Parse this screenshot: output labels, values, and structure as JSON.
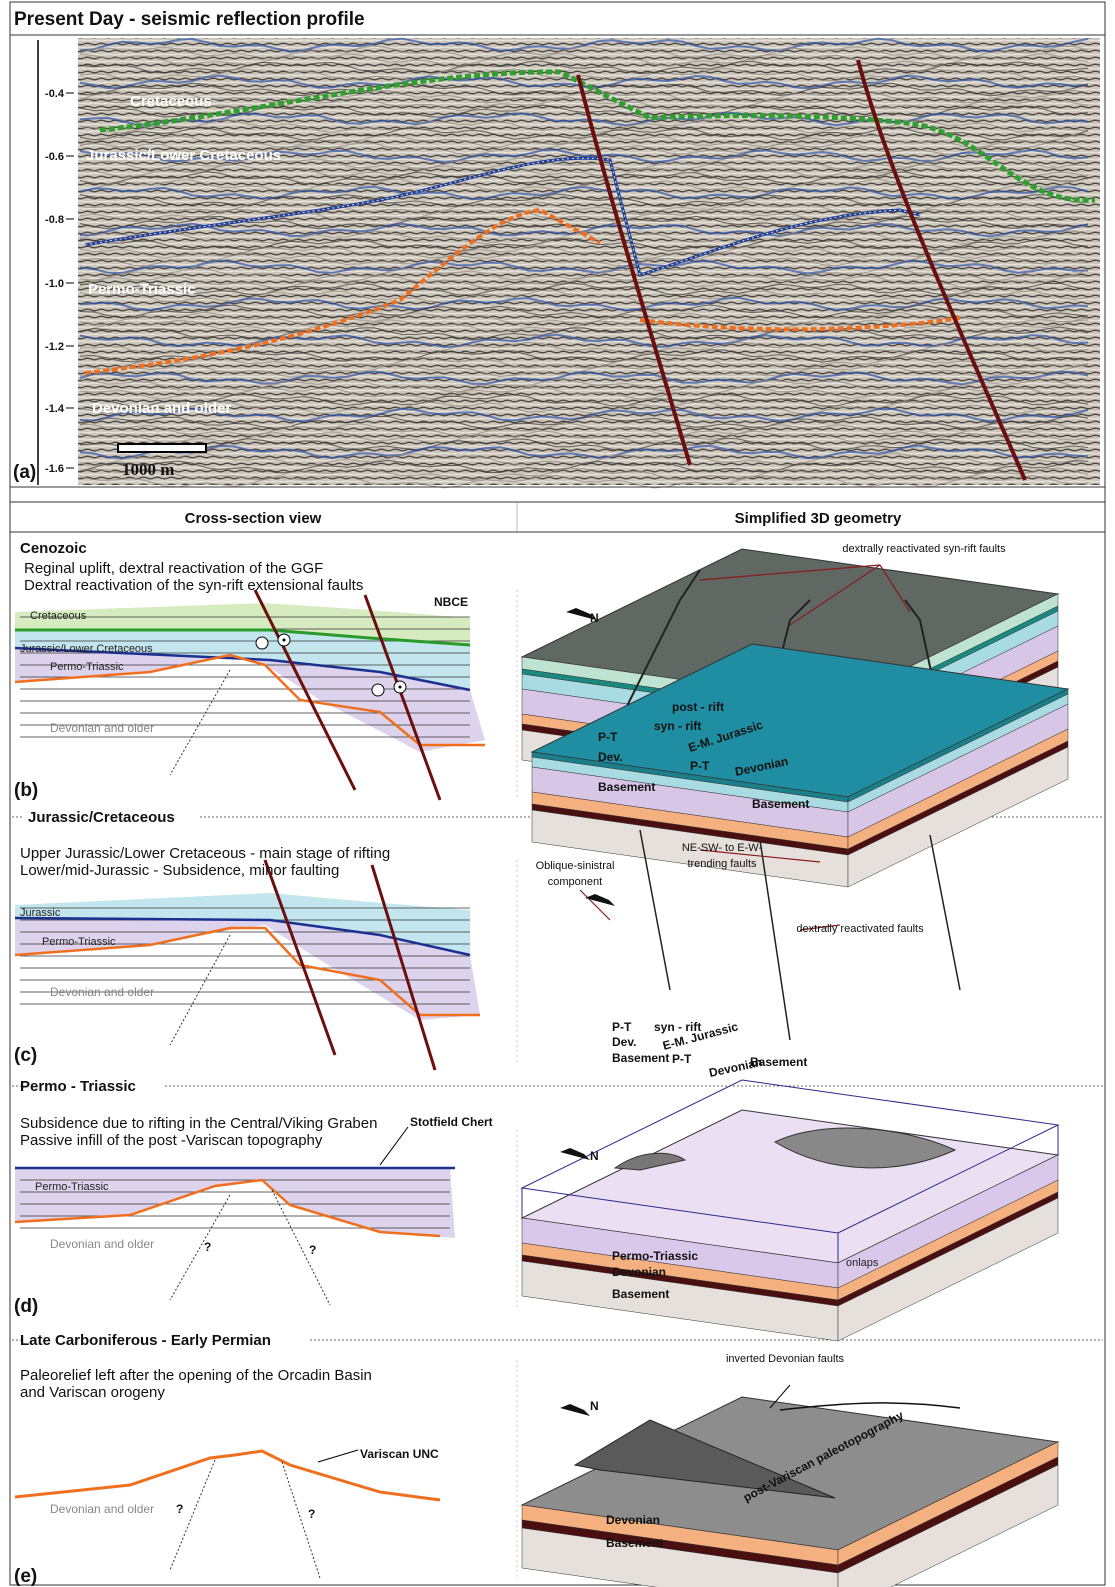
{
  "panel_a": {
    "title": "Present Day - seismic reflection profile",
    "y_ticks": [
      "-0.4",
      "-0.6",
      "-0.8",
      "-1.0",
      "-1.2",
      "-1.4",
      "-1.6"
    ],
    "units": [
      "Cretaceous",
      "Jurassic/Lower Cretaceous",
      "Permo-Triassic",
      "Devonian and older"
    ],
    "scale_bar": "1000 m",
    "tag": "(a)"
  },
  "headers": {
    "left": "Cross-section view",
    "right": "Simplified 3D geometry"
  },
  "panel_b": {
    "stage": "Cenozoic",
    "description": [
      "Reginal uplift, dextral reactivation of the GGF",
      "Dextral reactivation of the syn-rift extensional faults"
    ],
    "section_labels": [
      "Cretaceous",
      "Jurassic/Lower Cretaceous",
      "Permo-Triassic",
      "Devonian and older",
      "NBCE"
    ],
    "block_labels": [
      "dextrally reactivated syn-rift faults",
      "N",
      "post - rift",
      "syn - rift",
      "P-T",
      "E-M. Jurassic",
      "Dev.",
      "P-T",
      "Devonian",
      "Basement",
      "Basement"
    ],
    "tag": "(b)"
  },
  "panel_c": {
    "stage": "Jurassic/Cretaceous",
    "description": [
      "Upper Jurassic/Lower Cretaceous - main stage of rifting",
      "Lower/mid-Jurassic - Subsidence, minor faulting"
    ],
    "section_labels": [
      "Jurassic",
      "Permo-Triassic",
      "Devonian and older"
    ],
    "block_labels": [
      "Oblique-sinistral",
      "component",
      "NE-SW- to E-W-",
      "trending faults",
      "dextrally reactivated faults",
      "P-T",
      "syn - rift",
      "E-M. Jurassic",
      "Dev.",
      "P-T",
      "Devonian",
      "Basement",
      "Basement"
    ],
    "tag": "(c)"
  },
  "panel_d": {
    "stage": "Permo - Triassic",
    "description": [
      "Subsidence due to rifting in the Central/Viking Graben",
      "Passive infill of the post -Variscan topography"
    ],
    "section_labels": [
      "Stotfield Chert",
      "Permo-Triassic",
      "Devonian and older",
      "?",
      "?"
    ],
    "block_labels": [
      "N",
      "Permo-Triassic",
      "Devonian",
      "Basement",
      "onlaps"
    ],
    "tag": "(d)"
  },
  "panel_e": {
    "stage": "Late Carboniferous - Early Permian",
    "description": [
      "Paleorelief left after the opening of the Orcadin Basin",
      "and Variscan orogeny"
    ],
    "section_labels": [
      "Variscan UNC",
      "Devonian and older",
      "?",
      "?"
    ],
    "block_labels": [
      "inverted Devonian faults",
      "N",
      "post-Variscan paleotopography",
      "Devonian",
      "Basement"
    ],
    "tag": "(e)"
  }
}
